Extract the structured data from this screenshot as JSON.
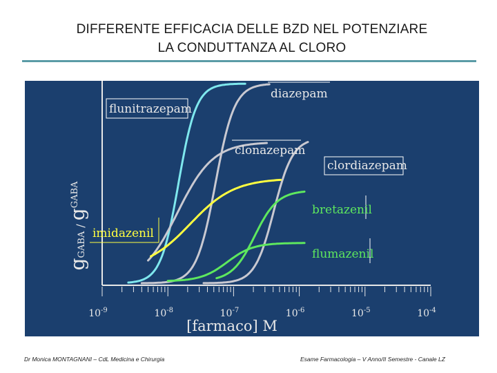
{
  "slide": {
    "title_line1": "DIFFERENTE EFFICACIA DELLE BZD NEL POTENZIARE",
    "title_line2": "LA CONDUTTANZA AL CLORO",
    "footer_left": "Dr Monica MONTAGNANI – CdL Medicina e Chirurgia",
    "footer_right": "Esame Farmacologia – V Anno/II Semestre - Canale LZ"
  },
  "colors": {
    "panel_background": "#1b3f6e",
    "axis": "#e8e8e8",
    "title_rule": "#5a9ba6"
  },
  "chart_data": {
    "type": "line",
    "xlabel": "[farmaco] M",
    "ylabel_main": "g",
    "ylabel_sub": "GABA",
    "ylabel_sep": " / ",
    "x_scale": "log",
    "xlim": [
      1e-09,
      0.0001
    ],
    "x_ticks": [
      1e-09,
      1e-08,
      1e-07,
      1e-06,
      1e-05,
      0.0001
    ],
    "x_tick_labels": [
      {
        "base": "10",
        "exp": "-9"
      },
      {
        "base": "10",
        "exp": "-8"
      },
      {
        "base": "10",
        "exp": "-7"
      },
      {
        "base": "10",
        "exp": "-6"
      },
      {
        "base": "10",
        "exp": "-5"
      },
      {
        "base": "10",
        "exp": "-4"
      }
    ],
    "y_range_relative": [
      0,
      1
    ],
    "grid": false,
    "legend": "labels next to curves",
    "series": [
      {
        "name": "flunitrazepam",
        "color": "#7fe8ee",
        "x_start": 2.5e-09,
        "x_end": 1.5e-07,
        "y_min": 0.01,
        "y_max": 1.0,
        "ec50": 1.45e-08,
        "hill": 3.2
      },
      {
        "name": "diazepam",
        "color": "#c9c9d1",
        "x_start": 4e-09,
        "x_end": 3.5e-07,
        "y_min": 0.01,
        "y_max": 1.0,
        "ec50": 5.3e-08,
        "hill": 3.0
      },
      {
        "name": "clonazepam",
        "color": "#c9c9d1",
        "x_start": 5e-09,
        "x_end": 3.2e-07,
        "y_min": 0.01,
        "y_max": 0.71,
        "ec50": 1.4e-08,
        "hill": 1.6
      },
      {
        "name": "clordiazepam",
        "color": "#c9c9d1",
        "x_start": 3.5e-08,
        "x_end": 1.35e-06,
        "y_min": 0.01,
        "y_max": 0.73,
        "ec50": 4.1e-07,
        "hill": 3.0
      },
      {
        "name": "imidazenil",
        "color": "#ffff40",
        "x_start": 5.5e-09,
        "x_end": 5.2e-07,
        "y_min": 0.08,
        "y_max": 0.53,
        "ec50": 2.2e-08,
        "hill": 1.3
      },
      {
        "name": "bretazenil",
        "color": "#5ee85e",
        "x_start": 5.5e-08,
        "x_end": 1.2e-06,
        "y_min": 0.02,
        "y_max": 0.47,
        "ec50": 2.1e-07,
        "hill": 2.5
      },
      {
        "name": "flumazenil",
        "color": "#5ee85e",
        "x_start": 1e-08,
        "x_end": 1.2e-06,
        "y_min": 0.02,
        "y_max": 0.21,
        "ec50": 8e-08,
        "hill": 2.2
      }
    ]
  }
}
